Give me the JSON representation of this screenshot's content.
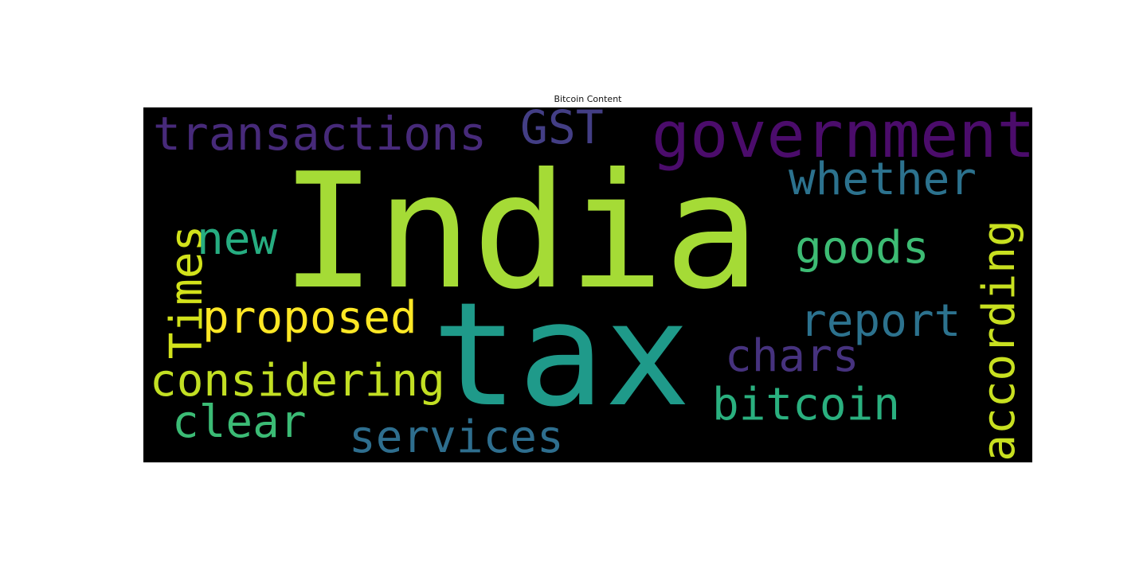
{
  "chart_data": {
    "type": "wordcloud",
    "title": "Bitcoin Content",
    "background": "#000000",
    "words": [
      {
        "text": "India",
        "color": "#a5db36"
      },
      {
        "text": "tax",
        "color": "#1f9a8a"
      },
      {
        "text": "government",
        "color": "#4b0c6b"
      },
      {
        "text": "transactions",
        "color": "#472a7a"
      },
      {
        "text": "GST",
        "color": "#433e85"
      },
      {
        "text": "whether",
        "color": "#2c728e"
      },
      {
        "text": "Times",
        "color": "#d2e21b"
      },
      {
        "text": "new",
        "color": "#26ad81"
      },
      {
        "text": "goods",
        "color": "#3dbc74"
      },
      {
        "text": "according",
        "color": "#c8e020"
      },
      {
        "text": "proposed",
        "color": "#fde725"
      },
      {
        "text": "report",
        "color": "#2c728e"
      },
      {
        "text": "chars",
        "color": "#46327e"
      },
      {
        "text": "considering",
        "color": "#c2df23"
      },
      {
        "text": "bitcoin",
        "color": "#2ab07f"
      },
      {
        "text": "clear",
        "color": "#3bbb75"
      },
      {
        "text": "services",
        "color": "#2e6e8e"
      }
    ]
  }
}
